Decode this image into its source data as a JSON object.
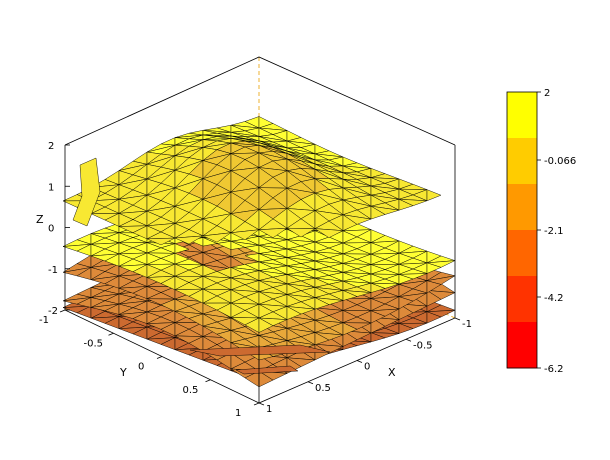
{
  "chart_data": {
    "type": "surface3d",
    "title": "",
    "xlabel": "X",
    "ylabel": "Y",
    "zlabel": "Z",
    "x_ticks": [
      "-1",
      "-0.5",
      "0",
      "0.5",
      "1"
    ],
    "y_ticks": [
      "-1",
      "-0.5",
      "0",
      "0.5",
      "1"
    ],
    "z_ticks": [
      "-2",
      "-1",
      "0",
      "1",
      "2"
    ],
    "xlim": [
      -1,
      1
    ],
    "ylim": [
      -1,
      1
    ],
    "zlim": [
      -2,
      2
    ],
    "colorbar": {
      "labels": [
        "2",
        "-0.066",
        "-2.1",
        "-4.2",
        "-6.2"
      ],
      "range": [
        -6.2,
        2
      ],
      "colors": [
        "#ffff00",
        "#ffcc00",
        "#ff9900",
        "#ff6600",
        "#ff3300",
        "#ff0000"
      ]
    },
    "grid": false,
    "surface_fill_colors": [
      "#ffff33",
      "#f8e832",
      "#f0c832",
      "#e8a83a",
      "#dd8a3a",
      "#cc6a30"
    ]
  }
}
